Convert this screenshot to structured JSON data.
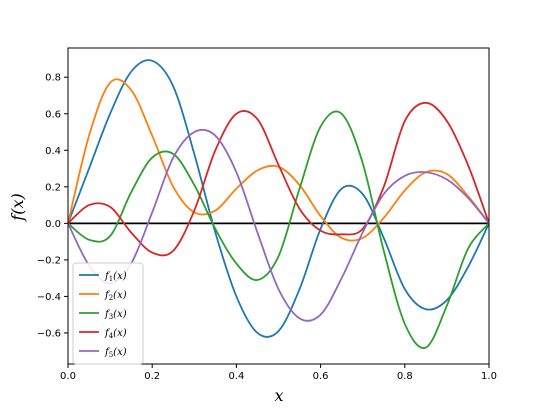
{
  "chart_data": {
    "type": "line",
    "title": "",
    "xlabel": "x",
    "ylabel": "f(x)",
    "xlim": [
      0.0,
      1.0
    ],
    "ylim": [
      -0.77,
      0.96
    ],
    "x_ticks": [
      "0.0",
      "0.2",
      "0.4",
      "0.6",
      "0.8",
      "1.0"
    ],
    "y_ticks": [
      "−0.6",
      "−0.4",
      "−0.2",
      "0.0",
      "0.2",
      "0.4",
      "0.6",
      "0.8"
    ],
    "grid": false,
    "legend_position": "lower-left",
    "zero_line": true,
    "x": [
      0.0,
      0.05,
      0.1,
      0.15,
      0.2,
      0.25,
      0.3,
      0.35,
      0.4,
      0.45,
      0.5,
      0.55,
      0.6,
      0.65,
      0.7,
      0.75,
      0.8,
      0.85,
      0.9,
      0.95,
      1.0
    ],
    "series": [
      {
        "name": "f1(x)",
        "color": "#1f77b4",
        "values": [
          0.0,
          0.3,
          0.6,
          0.83,
          0.89,
          0.75,
          0.38,
          -0.05,
          -0.4,
          -0.6,
          -0.59,
          -0.36,
          -0.03,
          0.19,
          0.16,
          -0.08,
          -0.36,
          -0.47,
          -0.42,
          -0.24,
          0.0
        ]
      },
      {
        "name": "f2(x)",
        "color": "#ff7f0e",
        "values": [
          0.0,
          0.48,
          0.77,
          0.73,
          0.48,
          0.2,
          0.06,
          0.07,
          0.19,
          0.29,
          0.31,
          0.21,
          0.04,
          -0.08,
          -0.08,
          0.03,
          0.18,
          0.28,
          0.27,
          0.15,
          0.0
        ]
      },
      {
        "name": "f3(x)",
        "color": "#2ca02c",
        "values": [
          0.0,
          -0.09,
          -0.07,
          0.17,
          0.36,
          0.38,
          0.21,
          -0.03,
          -0.22,
          -0.31,
          -0.18,
          0.19,
          0.53,
          0.6,
          0.33,
          -0.15,
          -0.55,
          -0.68,
          -0.45,
          -0.14,
          0.0
        ]
      },
      {
        "name": "f4(x)",
        "color": "#d62728",
        "values": [
          0.0,
          0.1,
          0.09,
          -0.05,
          -0.16,
          -0.15,
          0.07,
          0.4,
          0.6,
          0.57,
          0.32,
          0.08,
          -0.04,
          -0.06,
          -0.03,
          0.2,
          0.56,
          0.66,
          0.56,
          0.32,
          0.0
        ]
      },
      {
        "name": "f5(x)",
        "color": "#9467bd",
        "values": [
          0.0,
          -0.23,
          -0.33,
          -0.22,
          0.06,
          0.36,
          0.5,
          0.48,
          0.28,
          -0.05,
          -0.36,
          -0.52,
          -0.5,
          -0.3,
          -0.05,
          0.16,
          0.26,
          0.28,
          0.24,
          0.14,
          0.0
        ]
      }
    ],
    "legend_labels": [
      {
        "base": "f",
        "sub": "1",
        "suffix": "(x)"
      },
      {
        "base": "f",
        "sub": "2",
        "suffix": "(x)"
      },
      {
        "base": "f",
        "sub": "3",
        "suffix": "(x)"
      },
      {
        "base": "f",
        "sub": "4",
        "suffix": "(x)"
      },
      {
        "base": "f",
        "sub": "5",
        "suffix": "(x)"
      }
    ]
  }
}
